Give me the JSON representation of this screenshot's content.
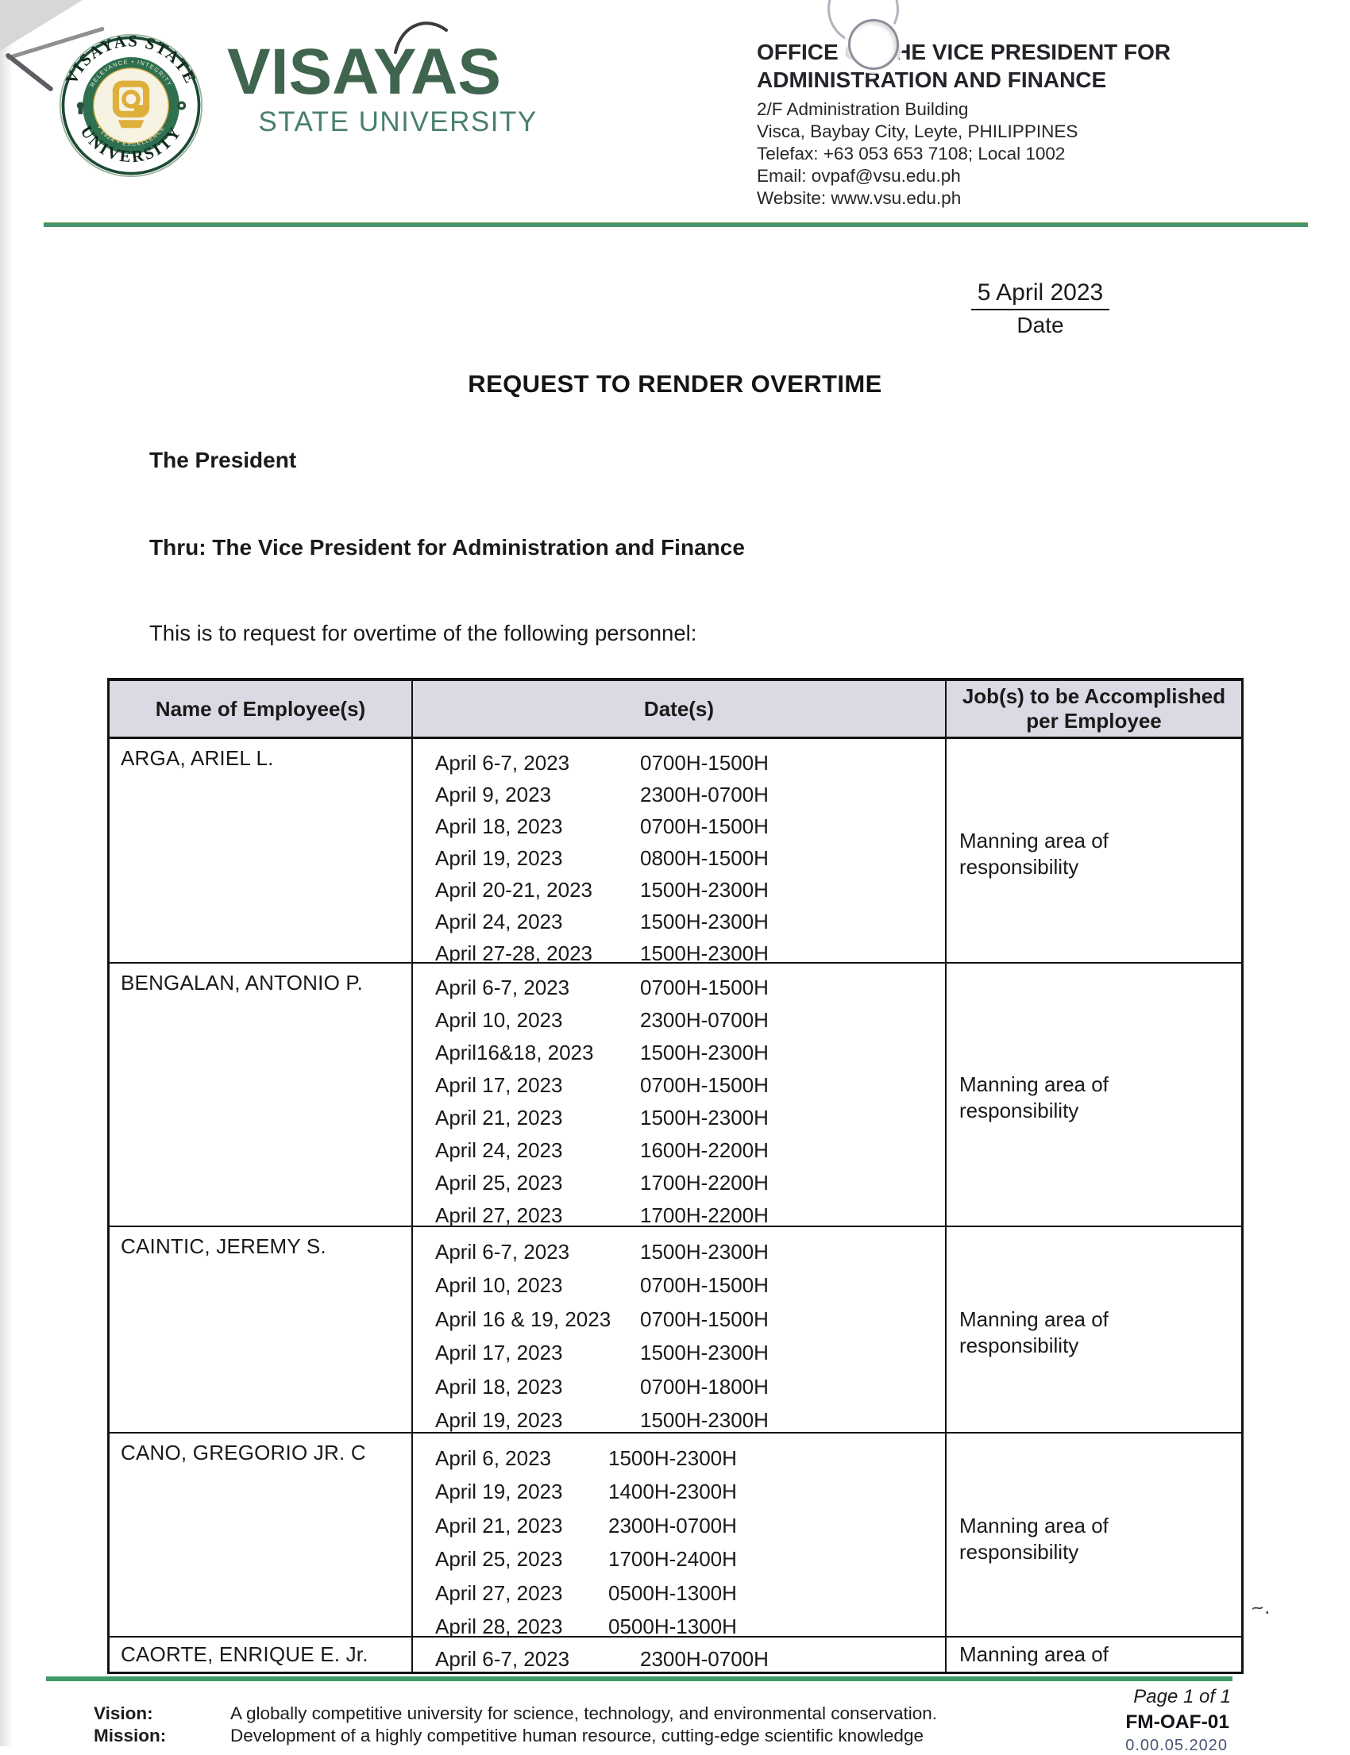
{
  "header": {
    "wordmark_line1": "VISAYAS",
    "wordmark_line2": "STATE UNIVERSITY",
    "seal": {
      "arc_top": "VISAYAS STATE",
      "arc_bottom": "UNIVERSITY",
      "ring_top": "RELEVANCE • INTEGRITY",
      "ring_bottom": "• 1924 • EXCELLENCE"
    },
    "office_line1": "OFFICE OF THE VICE PRESIDENT FOR",
    "office_line2": "ADMINISTRATION AND FINANCE",
    "address_line": "2/F Administration Building",
    "location_line": "Visca, Baybay City, Leyte, PHILIPPINES",
    "telefax_line": "Telefax: +63 053 653 7108; Local 1002",
    "email_line": "Email: ovpaf@vsu.edu.ph",
    "website_line": "Website: www.vsu.edu.ph"
  },
  "date_block": {
    "value": "5 April 2023",
    "label": "Date"
  },
  "title": "REQUEST TO RENDER OVERTIME",
  "letter": {
    "recipient": "The President",
    "thru": "Thru: The Vice President for Administration and Finance",
    "intro": "This is to request for overtime of the following personnel:"
  },
  "table": {
    "col_name": "Name of Employee(s)",
    "col_dates": "Date(s)",
    "col_job": "Job(s) to be Accomplished per Employee",
    "employees": [
      {
        "name": "ARGA, ARIEL L.",
        "job": "Manning area of responsibility",
        "dates": [
          {
            "date": "April 6-7, 2023",
            "time": "0700H-1500H"
          },
          {
            "date": "April 9, 2023",
            "time": "2300H-0700H"
          },
          {
            "date": "April 18, 2023",
            "time": "0700H-1500H"
          },
          {
            "date": "April 19, 2023",
            "time": "0800H-1500H"
          },
          {
            "date": "April 20-21, 2023",
            "time": "1500H-2300H"
          },
          {
            "date": "April 24, 2023",
            "time": "1500H-2300H"
          },
          {
            "date": "April 27-28, 2023",
            "time": "1500H-2300H"
          }
        ]
      },
      {
        "name": "BENGALAN, ANTONIO P.",
        "job": "Manning area of responsibility",
        "dates": [
          {
            "date": "April 6-7, 2023",
            "time": "0700H-1500H"
          },
          {
            "date": "April 10, 2023",
            "time": "2300H-0700H"
          },
          {
            "date": "April16&18, 2023",
            "time": "1500H-2300H"
          },
          {
            "date": "April 17, 2023",
            "time": "0700H-1500H"
          },
          {
            "date": "April 21, 2023",
            "time": "1500H-2300H"
          },
          {
            "date": "April 24, 2023",
            "time": "1600H-2200H"
          },
          {
            "date": "April 25, 2023",
            "time": "1700H-2200H"
          },
          {
            "date": "April 27, 2023",
            "time": "1700H-2200H"
          }
        ]
      },
      {
        "name": "CAINTIC, JEREMY S.",
        "job": "Manning area of responsibility",
        "dates": [
          {
            "date": "April 6-7, 2023",
            "time": "1500H-2300H"
          },
          {
            "date": "April 10, 2023",
            "time": "0700H-1500H"
          },
          {
            "date": "April 16 & 19, 2023",
            "time": "0700H-1500H"
          },
          {
            "date": "April 17, 2023",
            "time": "1500H-2300H"
          },
          {
            "date": "April 18, 2023",
            "time": "0700H-1800H"
          },
          {
            "date": "April 19, 2023",
            "time": "1500H-2300H"
          }
        ]
      },
      {
        "name": "CANO, GREGORIO JR. C",
        "job": "Manning area of responsibility",
        "dates": [
          {
            "date": "April 6, 2023",
            "time": "1500H-2300H"
          },
          {
            "date": "April 19, 2023",
            "time": "1400H-2300H"
          },
          {
            "date": "April 21, 2023",
            "time": "2300H-0700H"
          },
          {
            "date": "April 25, 2023",
            "time": "1700H-2400H"
          },
          {
            "date": "April 27, 2023",
            "time": "0500H-1300H"
          },
          {
            "date": "April 28, 2023",
            "time": "0500H-1300H"
          }
        ]
      },
      {
        "name": "CAORTE, ENRIQUE E. Jr.",
        "job": "Manning area of",
        "dates": [
          {
            "date": "April 6-7, 2023",
            "time": "2300H-0700H"
          }
        ]
      }
    ]
  },
  "footer": {
    "page_label": "Page 1 of 1",
    "vision_label": "Vision:",
    "vision_text": "A globally competitive university for science, technology, and environmental conservation.",
    "mission_label": "Mission:",
    "mission_text": "Development of a highly competitive human resource, cutting-edge scientific knowledge",
    "form_code": "FM-OAF-01",
    "form_revision": "0.00.05.2020"
  },
  "artifacts": {
    "pen_mark": "~."
  },
  "colors": {
    "brand_green": "#2e7050",
    "rule_green": "#45946a",
    "table_header_bg": "#dadae4"
  }
}
